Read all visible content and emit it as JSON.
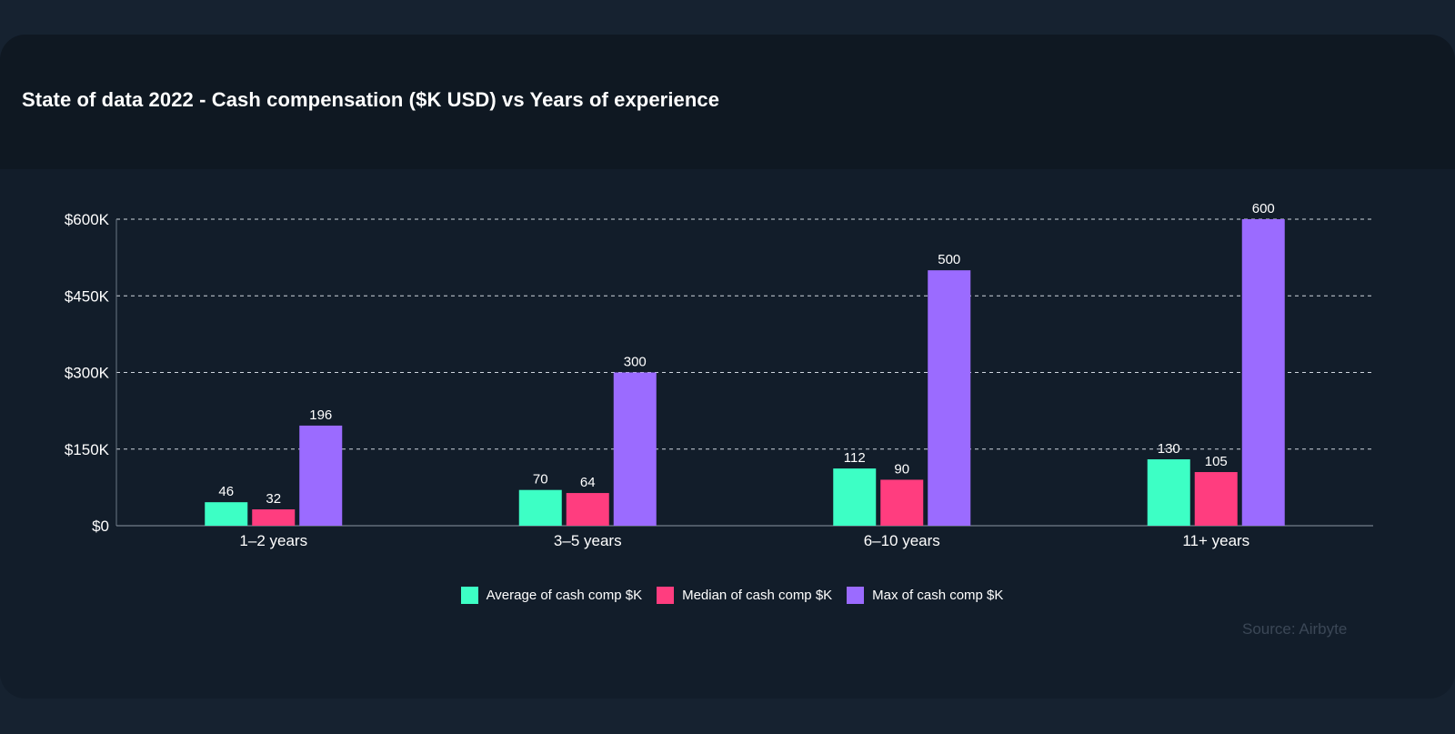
{
  "chart_data": {
    "type": "bar",
    "title": "State of data 2022 - Cash compensation ($K USD) vs Years of experience",
    "categories": [
      "1–2 years",
      "3–5 years",
      "6–10 years",
      "11+ years"
    ],
    "series": [
      {
        "name": "Average of cash comp $K",
        "color": "#3dffc5",
        "values": [
          46,
          70,
          112,
          130
        ]
      },
      {
        "name": "Median of cash comp $K",
        "color": "#ff3d7f",
        "values": [
          32,
          64,
          90,
          105
        ]
      },
      {
        "name": "Max of cash comp $K",
        "color": "#9b6bff",
        "values": [
          196,
          300,
          500,
          600
        ]
      }
    ],
    "yticks": [
      {
        "value": 0,
        "label": "$0"
      },
      {
        "value": 150,
        "label": "$150K"
      },
      {
        "value": 300,
        "label": "$300K"
      },
      {
        "value": 450,
        "label": "$450K"
      },
      {
        "value": 600,
        "label": "$600K"
      }
    ],
    "ylim": [
      0,
      600
    ],
    "xlabel": "",
    "ylabel": "",
    "grid": true,
    "legend": "bottom-center",
    "source": "Source: Airbyte"
  }
}
